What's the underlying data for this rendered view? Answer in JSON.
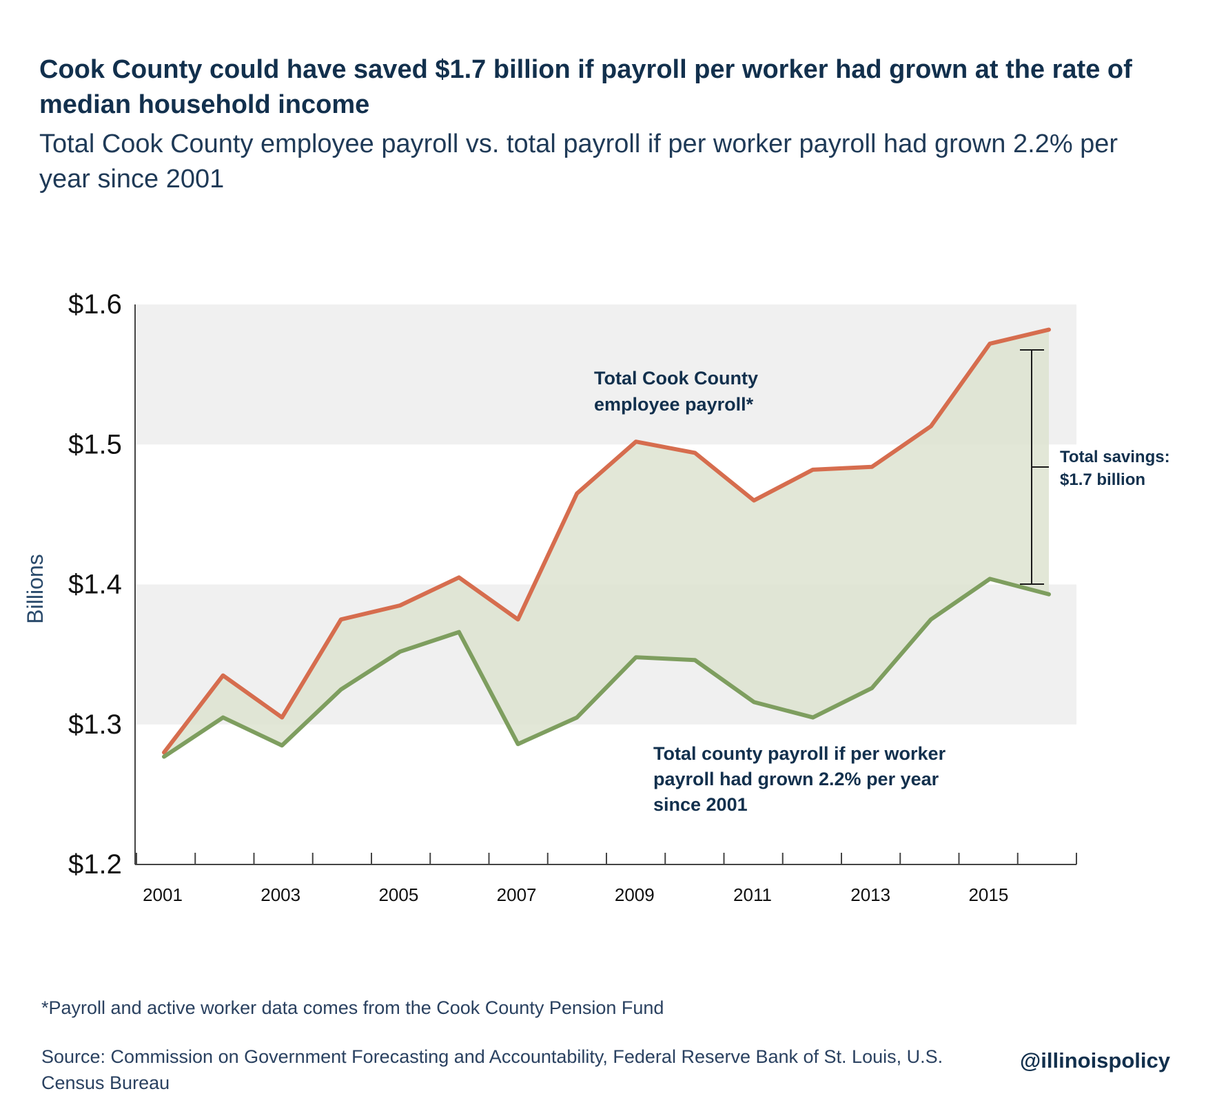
{
  "title": "Cook County could have saved $1.7 billion if payroll per worker had grown at the rate of median household income",
  "subtitle": "Total Cook County employee payroll vs. total payroll if per worker payroll had grown 2.2% per year since 2001",
  "footnote": "*Payroll and active worker data comes from the Cook County Pension Fund",
  "source": "Source: Commission on Government Forecasting and Accountability, Federal Reserve Bank of St. Louis, U.S. Census Bureau",
  "handle": "@illinoispolicy",
  "colors": {
    "actual": "#d66d4e",
    "hypothetical": "#7e9e5f",
    "fill": "#dde3d0",
    "band": "#f0f0f0",
    "text": "#12304d"
  },
  "chart_data": {
    "type": "line",
    "ylabel": "Billions",
    "xlabel": "",
    "x": [
      2001,
      2002,
      2003,
      2004,
      2005,
      2006,
      2007,
      2008,
      2009,
      2010,
      2011,
      2012,
      2013,
      2014,
      2015,
      2016
    ],
    "xticklabels": [
      "2001",
      "2003",
      "2005",
      "2007",
      "2009",
      "2011",
      "2013",
      "2015"
    ],
    "yticklabels": [
      "$1.2",
      "$1.3",
      "$1.4",
      "$1.5",
      "$1.6"
    ],
    "ylim": [
      1.2,
      1.6
    ],
    "grid": "alternating horizontal bands",
    "series": [
      {
        "name": "Total Cook County employee payroll*",
        "values": [
          1.28,
          1.335,
          1.305,
          1.375,
          1.385,
          1.405,
          1.375,
          1.465,
          1.502,
          1.494,
          1.46,
          1.482,
          1.484,
          1.513,
          1.572,
          1.582
        ]
      },
      {
        "name": "Total county payroll if per worker payroll had grown 2.2% per year since 2001",
        "values": [
          1.277,
          1.305,
          1.285,
          1.325,
          1.352,
          1.366,
          1.286,
          1.305,
          1.348,
          1.346,
          1.316,
          1.305,
          1.326,
          1.375,
          1.404,
          1.393
        ]
      }
    ],
    "annotations": [
      {
        "text": "Total savings: $1.7 billion"
      }
    ]
  }
}
